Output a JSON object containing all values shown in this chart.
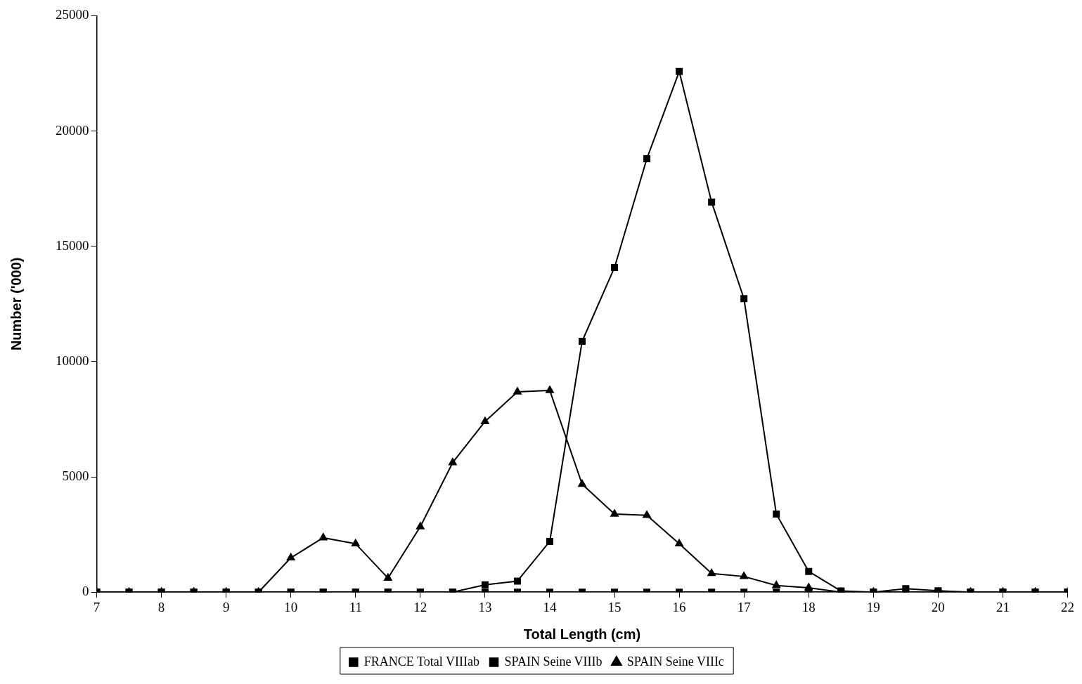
{
  "chart_data": {
    "type": "line",
    "xlabel": "Total Length (cm)",
    "ylabel": "Number ('000)",
    "x": [
      7,
      7.5,
      8,
      8.5,
      9,
      9.5,
      10,
      10.5,
      11,
      11.5,
      12,
      12.5,
      13,
      13.5,
      14,
      14.5,
      15,
      15.5,
      16,
      16.5,
      17,
      17.5,
      18,
      18.5,
      19,
      19.5,
      20,
      20.5,
      21,
      21.5,
      22
    ],
    "xlim": [
      7,
      22
    ],
    "xticks": [
      7,
      8,
      9,
      10,
      11,
      12,
      13,
      14,
      15,
      16,
      17,
      18,
      19,
      20,
      21,
      22
    ],
    "ylim": [
      0,
      25000
    ],
    "yticks": [
      0,
      5000,
      10000,
      15000,
      20000,
      25000
    ],
    "grid": false,
    "legend": "bottom",
    "line_style": "solid",
    "series": [
      {
        "name": "FRANCE Total VIIIab",
        "color": "#000000",
        "marker": "square",
        "values": [
          0,
          0,
          0,
          0,
          0,
          0,
          0,
          0,
          0,
          0,
          0,
          0,
          320,
          480,
          2200,
          10880,
          14080,
          18800,
          22580,
          16920,
          12730,
          3390,
          900,
          50,
          0,
          150,
          60,
          0,
          0,
          0,
          0
        ]
      },
      {
        "name": "SPAIN Seine VIIIb",
        "color": "#000000",
        "marker": "square",
        "values": [
          0,
          0,
          0,
          0,
          0,
          0,
          0,
          0,
          0,
          0,
          0,
          0,
          0,
          0,
          0,
          0,
          0,
          0,
          0,
          0,
          0,
          0,
          0,
          0,
          0,
          0,
          0,
          0,
          0,
          0,
          0
        ]
      },
      {
        "name": "SPAIN Seine VIIIc",
        "color": "#000000",
        "marker": "triangle",
        "values": [
          0,
          0,
          0,
          0,
          0,
          0,
          1490,
          2360,
          2100,
          610,
          2840,
          5620,
          7400,
          8690,
          8750,
          4680,
          3390,
          3330,
          2100,
          810,
          680,
          290,
          190,
          0,
          0,
          0,
          0,
          0,
          0,
          0,
          0
        ]
      }
    ]
  }
}
